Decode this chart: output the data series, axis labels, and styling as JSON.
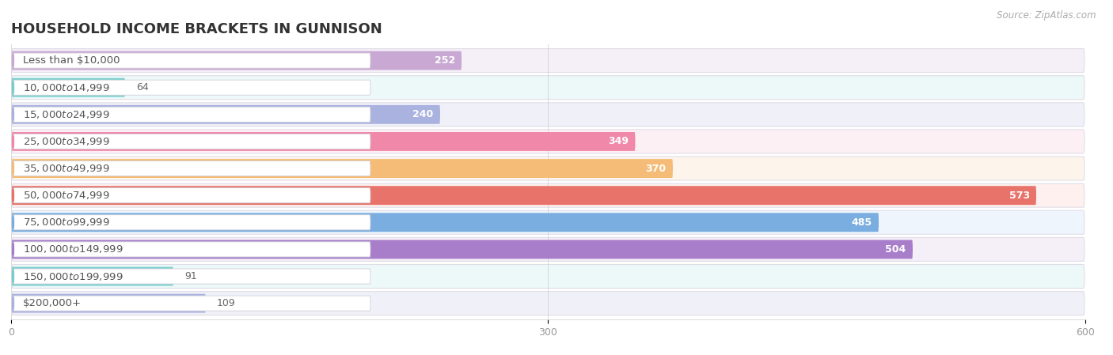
{
  "title": "HOUSEHOLD INCOME BRACKETS IN GUNNISON",
  "source": "Source: ZipAtlas.com",
  "categories": [
    "Less than $10,000",
    "$10,000 to $14,999",
    "$15,000 to $24,999",
    "$25,000 to $34,999",
    "$35,000 to $49,999",
    "$50,000 to $74,999",
    "$75,000 to $99,999",
    "$100,000 to $149,999",
    "$150,000 to $199,999",
    "$200,000+"
  ],
  "values": [
    252,
    64,
    240,
    349,
    370,
    573,
    485,
    504,
    91,
    109
  ],
  "bar_colors": [
    "#c9a8d4",
    "#78cece",
    "#aab2e0",
    "#f088aa",
    "#f5bc78",
    "#e8736a",
    "#7aaee0",
    "#a87ecb",
    "#78cece",
    "#aab2e0"
  ],
  "row_bg_colors": [
    "#f5f0f8",
    "#edf8f8",
    "#f0f0f8",
    "#fdf0f5",
    "#fdf5ec",
    "#fdf0ee",
    "#eef5fc",
    "#f5f0f8",
    "#edf8f8",
    "#f0f0f8"
  ],
  "dot_colors": [
    "#c9a8d4",
    "#78cece",
    "#aab2e0",
    "#f088aa",
    "#f5bc78",
    "#e8736a",
    "#7aaee0",
    "#a87ecb",
    "#78cece",
    "#aab2e0"
  ],
  "xlim": [
    0,
    600
  ],
  "xticks": [
    0,
    300,
    600
  ],
  "background_color": "#ffffff",
  "title_fontsize": 13,
  "label_fontsize": 9.5,
  "value_fontsize": 9,
  "value_white_threshold": 200
}
